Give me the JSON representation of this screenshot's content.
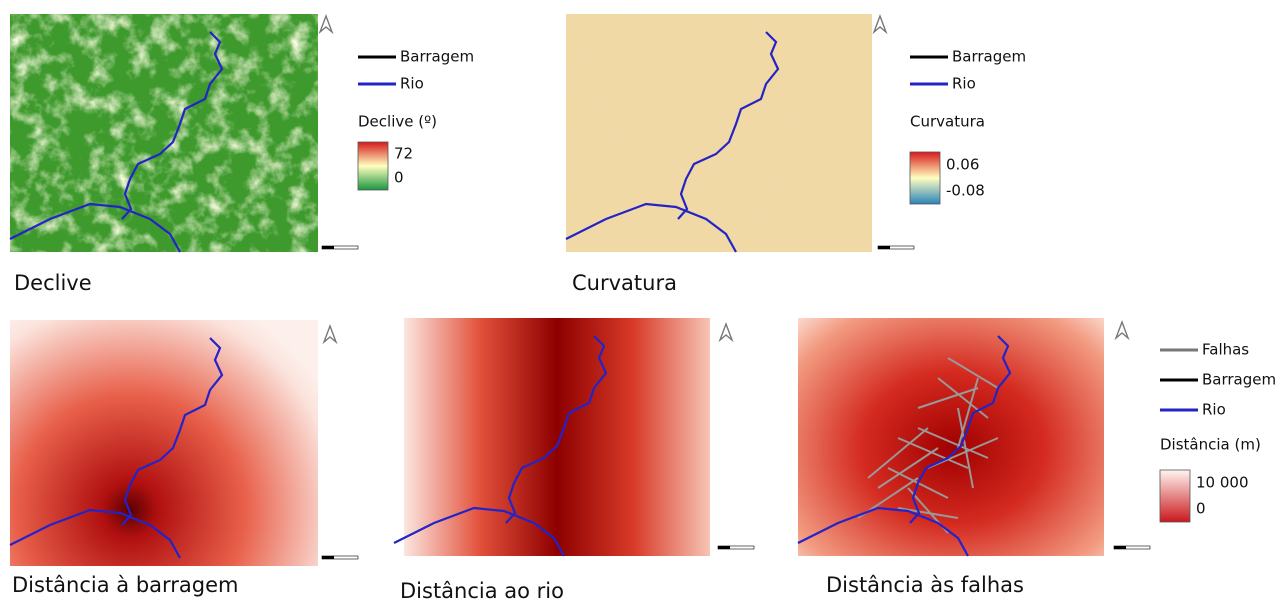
{
  "maps": [
    {
      "title": "Declive"
    },
    {
      "title": "Curvatura"
    },
    {
      "title": "Distância à barragem"
    },
    {
      "title": "Distância ao rio"
    },
    {
      "title": "Distância às falhas"
    }
  ],
  "legends": [
    {
      "items": [
        "Barragem",
        "Rio"
      ],
      "ramp_title": "Declive (º)",
      "ramp_labels": [
        "72",
        "0"
      ]
    },
    {
      "items": [
        "Barragem",
        "Rio"
      ],
      "ramp_title": "Curvatura",
      "ramp_labels": [
        "0.06",
        "-0.08"
      ]
    },
    {
      "items": [
        "Falhas",
        "Barragem",
        "Rio"
      ],
      "ramp_title": "Distância  (m)",
      "ramp_labels": [
        "10 000",
        "0"
      ]
    }
  ]
}
